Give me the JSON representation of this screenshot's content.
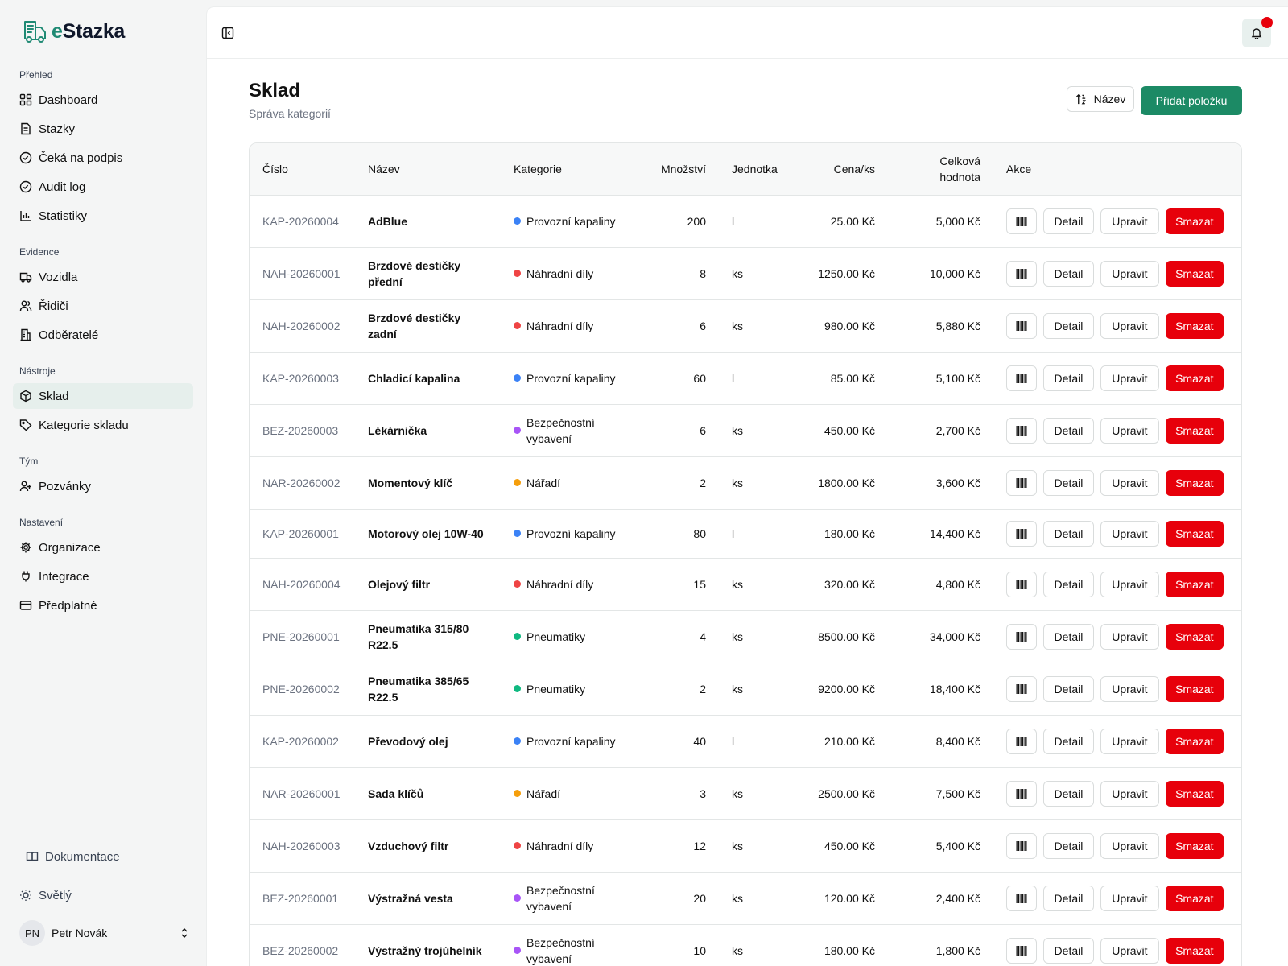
{
  "brand": {
    "name_prefix": "e",
    "name_rest": "Stazka",
    "accent": "#1f8a74"
  },
  "sidebar": {
    "groups": [
      {
        "label": "Přehled",
        "items": [
          {
            "label": "Dashboard",
            "icon": "grid-icon"
          },
          {
            "label": "Stazky",
            "icon": "document-icon"
          },
          {
            "label": "Čeká na podpis",
            "icon": "check-circle-icon"
          },
          {
            "label": "Audit log",
            "icon": "check-circle-icon"
          },
          {
            "label": "Statistiky",
            "icon": "bar-chart-icon"
          }
        ]
      },
      {
        "label": "Evidence",
        "items": [
          {
            "label": "Vozidla",
            "icon": "truck-icon"
          },
          {
            "label": "Řidiči",
            "icon": "users-icon"
          },
          {
            "label": "Odběratelé",
            "icon": "building-icon"
          }
        ]
      },
      {
        "label": "Nástroje",
        "items": [
          {
            "label": "Sklad",
            "icon": "package-icon",
            "active": true
          },
          {
            "label": "Kategorie skladu",
            "icon": "tag-icon"
          }
        ]
      },
      {
        "label": "Tým",
        "items": [
          {
            "label": "Pozvánky",
            "icon": "user-plus-icon"
          }
        ]
      },
      {
        "label": "Nastavení",
        "items": [
          {
            "label": "Organizace",
            "icon": "gear-icon"
          },
          {
            "label": "Integrace",
            "icon": "plug-icon"
          },
          {
            "label": "Předplatné",
            "icon": "credit-card-icon"
          }
        ]
      }
    ],
    "docs_label": "Dokumentace",
    "theme_label": "Světlý",
    "user": {
      "initials": "PN",
      "name": "Petr Novák"
    }
  },
  "page": {
    "title": "Sklad",
    "subtitle": "Správa kategorií",
    "sort_label": "Název",
    "add_label": "Přidat položku"
  },
  "table": {
    "headers": [
      "Číslo",
      "Název",
      "Kategorie",
      "Množství",
      "Jednotka",
      "Cena/ks",
      "Celková hodnota",
      "Akce"
    ],
    "action_labels": {
      "detail": "Detail",
      "edit": "Upravit",
      "delete": "Smazat"
    },
    "category_colors": {
      "Provozní kapaliny": "#3b82f6",
      "Náhradní díly": "#ef4444",
      "Bezpečnostní vybavení": "#a855f7",
      "Nářadí": "#f59e0b",
      "Pneumatiky": "#10b981"
    },
    "rows": [
      {
        "id": "KAP-20260004",
        "name": "AdBlue",
        "category": "Provozní kapaliny",
        "qty": "200",
        "unit": "l",
        "price": "25.00 Kč",
        "total": "5,000 Kč"
      },
      {
        "id": "NAH-20260001",
        "name": "Brzdové destičky přední",
        "category": "Náhradní díly",
        "qty": "8",
        "unit": "ks",
        "price": "1250.00 Kč",
        "total": "10,000 Kč"
      },
      {
        "id": "NAH-20260002",
        "name": "Brzdové destičky zadní",
        "category": "Náhradní díly",
        "qty": "6",
        "unit": "ks",
        "price": "980.00 Kč",
        "total": "5,880 Kč"
      },
      {
        "id": "KAP-20260003",
        "name": "Chladicí kapalina",
        "category": "Provozní kapaliny",
        "qty": "60",
        "unit": "l",
        "price": "85.00 Kč",
        "total": "5,100 Kč"
      },
      {
        "id": "BEZ-20260003",
        "name": "Lékárnička",
        "category": "Bezpečnostní vybavení",
        "qty": "6",
        "unit": "ks",
        "price": "450.00 Kč",
        "total": "2,700 Kč"
      },
      {
        "id": "NAR-20260002",
        "name": "Momentový klíč",
        "category": "Nářadí",
        "qty": "2",
        "unit": "ks",
        "price": "1800.00 Kč",
        "total": "3,600 Kč"
      },
      {
        "id": "KAP-20260001",
        "name": "Motorový olej 10W-40",
        "category": "Provozní kapaliny",
        "qty": "80",
        "unit": "l",
        "price": "180.00 Kč",
        "total": "14,400 Kč",
        "short": true
      },
      {
        "id": "NAH-20260004",
        "name": "Olejový filtr",
        "category": "Náhradní díly",
        "qty": "15",
        "unit": "ks",
        "price": "320.00 Kč",
        "total": "4,800 Kč"
      },
      {
        "id": "PNE-20260001",
        "name": "Pneumatika 315/80 R22.5",
        "category": "Pneumatiky",
        "qty": "4",
        "unit": "ks",
        "price": "8500.00 Kč",
        "total": "34,000 Kč"
      },
      {
        "id": "PNE-20260002",
        "name": "Pneumatika 385/65 R22.5",
        "category": "Pneumatiky",
        "qty": "2",
        "unit": "ks",
        "price": "9200.00 Kč",
        "total": "18,400 Kč"
      },
      {
        "id": "KAP-20260002",
        "name": "Převodový olej",
        "category": "Provozní kapaliny",
        "qty": "40",
        "unit": "l",
        "price": "210.00 Kč",
        "total": "8,400 Kč"
      },
      {
        "id": "NAR-20260001",
        "name": "Sada klíčů",
        "category": "Nářadí",
        "qty": "3",
        "unit": "ks",
        "price": "2500.00 Kč",
        "total": "7,500 Kč"
      },
      {
        "id": "NAH-20260003",
        "name": "Vzduchový filtr",
        "category": "Náhradní díly",
        "qty": "12",
        "unit": "ks",
        "price": "450.00 Kč",
        "total": "5,400 Kč"
      },
      {
        "id": "BEZ-20260001",
        "name": "Výstražná vesta",
        "category": "Bezpečnostní vybavení",
        "qty": "20",
        "unit": "ks",
        "price": "120.00 Kč",
        "total": "2,400 Kč"
      },
      {
        "id": "BEZ-20260002",
        "name": "Výstražný trojúhelník",
        "category": "Bezpečnostní vybavení",
        "qty": "10",
        "unit": "ks",
        "price": "180.00 Kč",
        "total": "1,800 Kč"
      }
    ]
  },
  "colors": {
    "primary": "#1c8a65",
    "danger": "#e7000b",
    "notification": "#e7000b"
  }
}
